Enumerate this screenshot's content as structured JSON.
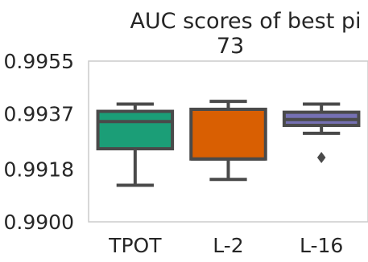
{
  "chart_data": {
    "type": "box",
    "title": "AUC scores of best pi",
    "subtitle": "73",
    "xlabel": "",
    "ylabel": "",
    "categories": [
      "TPOT",
      "L-2",
      "L-16"
    ],
    "y_ticks": [
      "0.9900",
      "0.9918",
      "0.9937",
      "0.9955"
    ],
    "ylim": [
      0.99,
      0.9955
    ],
    "grid": false,
    "series": [
      {
        "category": "TPOT",
        "color": "#1b9e77",
        "whisker_low": 0.99125,
        "q1": 0.9925,
        "median": 0.99343,
        "q3": 0.99378,
        "whisker_high": 0.99403,
        "outliers": []
      },
      {
        "category": "L-2",
        "color": "#d95f02",
        "whisker_low": 0.99145,
        "q1": 0.99215,
        "median": 0.99215,
        "q3": 0.99385,
        "whisker_high": 0.99412,
        "outliers": []
      },
      {
        "category": "L-16",
        "color": "#7570b3",
        "whisker_low": 0.99303,
        "q1": 0.9933,
        "median": 0.9935,
        "q3": 0.99375,
        "whisker_high": 0.99403,
        "outliers": [
          0.9922
        ]
      }
    ]
  }
}
